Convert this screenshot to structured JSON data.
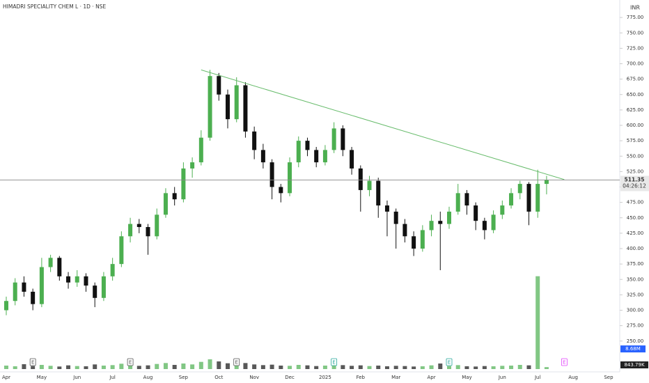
{
  "chart_data": {
    "type": "candlestick",
    "title": "HIMADRI SPECIALITY CHEM L · 1D · NSE",
    "currency": "INR",
    "countdown": "04:26:12",
    "up_color": "#4caf50",
    "down_color": "#111111",
    "categories": [
      "Apr",
      null,
      null,
      null,
      "May",
      null,
      null,
      null,
      "Jun",
      null,
      null,
      null,
      "Jul",
      null,
      null,
      null,
      "Aug",
      null,
      null,
      null,
      "Sep",
      null,
      null,
      null,
      "Oct",
      null,
      null,
      null,
      "Nov",
      null,
      null,
      null,
      "Dec",
      null,
      null,
      null,
      "2025",
      null,
      null,
      null,
      "Feb",
      null,
      null,
      null,
      "Mar",
      null,
      null,
      null,
      "Apr",
      null,
      null,
      null,
      "May",
      null,
      null,
      null,
      "Jun",
      null,
      null,
      null,
      "Jul",
      null,
      null,
      null,
      "Aug",
      null,
      null,
      null,
      "Sep",
      null,
      null,
      null
    ],
    "open": [
      300,
      315,
      345,
      330,
      310,
      370,
      385,
      355,
      345,
      355,
      340,
      320,
      355,
      375,
      420,
      440,
      435,
      420,
      455,
      490,
      480,
      530,
      540,
      580,
      680,
      650,
      610,
      665,
      590,
      560,
      540,
      500,
      490,
      540,
      575,
      560,
      540,
      560,
      595,
      560,
      530,
      495,
      510,
      470,
      460,
      440,
      420,
      400,
      430,
      445,
      440,
      460,
      490,
      470,
      445,
      430,
      455,
      470,
      490,
      505,
      460,
      505,
      null,
      null,
      null,
      null,
      null,
      null,
      null,
      null,
      null,
      null
    ],
    "high": [
      322,
      352,
      355,
      335,
      385,
      390,
      388,
      362,
      365,
      360,
      345,
      362,
      385,
      428,
      450,
      448,
      440,
      465,
      498,
      500,
      540,
      548,
      592,
      690,
      685,
      658,
      678,
      670,
      598,
      570,
      545,
      505,
      548,
      582,
      580,
      565,
      568,
      605,
      600,
      565,
      535,
      518,
      515,
      478,
      465,
      448,
      428,
      438,
      455,
      460,
      468,
      505,
      495,
      475,
      450,
      462,
      478,
      498,
      510,
      508,
      528,
      518,
      null,
      null,
      null,
      null,
      null,
      null,
      null,
      null,
      null,
      null
    ],
    "low": [
      292,
      308,
      322,
      300,
      305,
      362,
      348,
      335,
      338,
      330,
      305,
      315,
      348,
      370,
      410,
      425,
      390,
      415,
      450,
      470,
      475,
      515,
      535,
      575,
      640,
      595,
      605,
      580,
      545,
      530,
      480,
      475,
      485,
      532,
      550,
      532,
      535,
      555,
      550,
      520,
      460,
      485,
      450,
      420,
      400,
      410,
      388,
      395,
      420,
      365,
      432,
      455,
      455,
      430,
      415,
      425,
      448,
      465,
      480,
      438,
      450,
      488,
      null,
      null,
      null,
      null,
      null,
      null,
      null,
      null,
      null,
      null
    ],
    "close": [
      315,
      345,
      330,
      310,
      370,
      385,
      355,
      345,
      355,
      340,
      320,
      355,
      375,
      420,
      440,
      435,
      420,
      455,
      490,
      480,
      530,
      540,
      580,
      680,
      650,
      610,
      665,
      590,
      560,
      540,
      500,
      490,
      540,
      575,
      560,
      540,
      560,
      595,
      560,
      530,
      495,
      510,
      470,
      460,
      440,
      420,
      400,
      430,
      445,
      440,
      460,
      490,
      470,
      445,
      430,
      455,
      470,
      490,
      505,
      460,
      505,
      511.35,
      null,
      null,
      null,
      null,
      null,
      null,
      null,
      null,
      null,
      null
    ],
    "volume": [
      1500000,
      1200000,
      2100000,
      1300000,
      1800000,
      1400000,
      1100000,
      1600000,
      1300000,
      1200000,
      2000000,
      1500000,
      1700000,
      2300000,
      1900000,
      1400000,
      1600000,
      2200000,
      2600000,
      1800000,
      2400000,
      2000000,
      3100000,
      4200000,
      3300000,
      2500000,
      2800000,
      2600000,
      2000000,
      1700000,
      1900000,
      1500000,
      1400000,
      1800000,
      1600000,
      1300000,
      1500000,
      2100000,
      1700000,
      1400000,
      1600000,
      1300000,
      1500000,
      1200000,
      1400000,
      1300000,
      1100000,
      1200000,
      1600000,
      2400000,
      1300000,
      1700000,
      1200000,
      1100000,
      1300000,
      1200000,
      1400000,
      1500000,
      1800000,
      1600000,
      40000000,
      843790,
      null,
      null,
      null,
      null,
      null,
      null,
      null,
      null,
      null,
      null
    ],
    "volume_ma": {
      "value": 8680000,
      "label": "8.68M"
    },
    "last_volume": {
      "value": 843790,
      "label": "843.79K"
    },
    "trendline": {
      "color": "#66bb6a",
      "start_index": 22,
      "start_value": 690,
      "end_index": 63,
      "end_value": 512
    },
    "events": [
      {
        "label": "E",
        "index": 3,
        "color": "#555555"
      },
      {
        "label": "E",
        "index": 14,
        "color": "#555555"
      },
      {
        "label": "E",
        "index": 26,
        "color": "#555555"
      },
      {
        "label": "E",
        "index": 37,
        "color": "#26a69a"
      },
      {
        "label": "E",
        "index": 50,
        "color": "#26a69a"
      },
      {
        "label": "E",
        "index": 63,
        "color": "#e040fb"
      }
    ],
    "ylim": [
      200,
      800
    ],
    "yticks": [
      {
        "value": 250,
        "label": "250.00"
      },
      {
        "value": 275,
        "label": "275.00"
      },
      {
        "value": 300,
        "label": "300.00"
      },
      {
        "value": 325,
        "label": "325.00"
      },
      {
        "value": 350,
        "label": "350.00"
      },
      {
        "value": 375,
        "label": "375.00"
      },
      {
        "value": 400,
        "label": "400.00"
      },
      {
        "value": 425,
        "label": "425.00"
      },
      {
        "value": 450,
        "label": "450.00"
      },
      {
        "value": 475,
        "label": "475.00"
      },
      {
        "value": 500,
        "label": "500.00"
      },
      {
        "value": 525,
        "label": "525.00"
      },
      {
        "value": 550,
        "label": "550.00"
      },
      {
        "value": 575,
        "label": "575.00"
      },
      {
        "value": 600,
        "label": "600.00"
      },
      {
        "value": 625,
        "label": "625.00"
      },
      {
        "value": 650,
        "label": "650.00"
      },
      {
        "value": 675,
        "label": "675.00"
      },
      {
        "value": 700,
        "label": "700.00"
      },
      {
        "value": 725,
        "label": "725.00"
      },
      {
        "value": 750,
        "label": "750.00"
      },
      {
        "value": 775,
        "label": "775.00"
      }
    ],
    "vlim": [
      0,
      45000000
    ]
  }
}
